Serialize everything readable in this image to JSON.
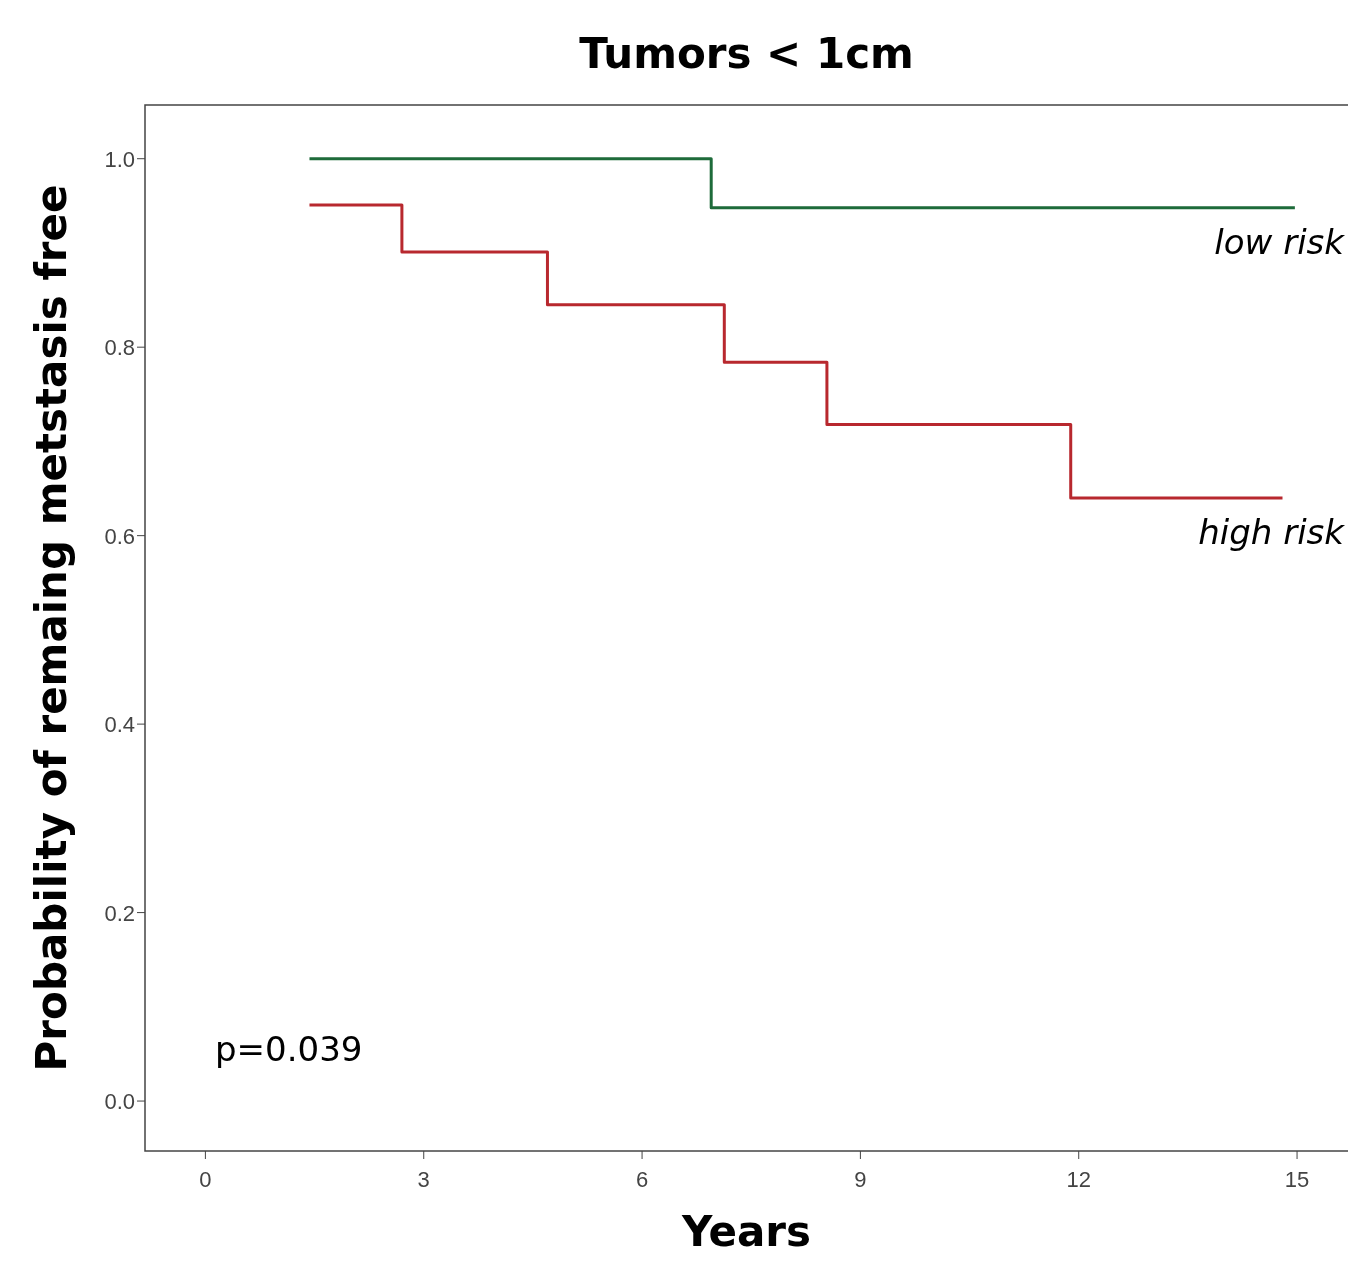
{
  "chart_data": {
    "type": "step",
    "title": "Tumors < 1cm",
    "xlabel": "Years",
    "ylabel": "Probability of remaing metstasis free",
    "xlim": [
      -0.83,
      15.7
    ],
    "ylim": [
      -0.053,
      1.057
    ],
    "xticks": [
      0,
      3,
      6,
      9,
      12,
      15
    ],
    "yticks": [
      {
        "value": 0,
        "label": "0.0"
      },
      0.2,
      0.4,
      0.6,
      0.8,
      {
        "value": 1,
        "label": "1.0"
      }
    ],
    "grid": false,
    "annotations": [
      {
        "text": "p=0.039"
      }
    ],
    "series": [
      {
        "name": "low risk",
        "color": "#1e6b3a",
        "x": [
          1.43,
          6.95,
          14.97
        ],
        "values": [
          1.0,
          0.948,
          0.948
        ]
      },
      {
        "name": "high risk",
        "color": "#b8282e",
        "x": [
          1.43,
          2.7,
          4.7,
          7.13,
          8.54,
          11.89,
          14.8
        ],
        "values": [
          0.951,
          0.901,
          0.845,
          0.784,
          0.718,
          0.64,
          0.64
        ]
      }
    ]
  }
}
